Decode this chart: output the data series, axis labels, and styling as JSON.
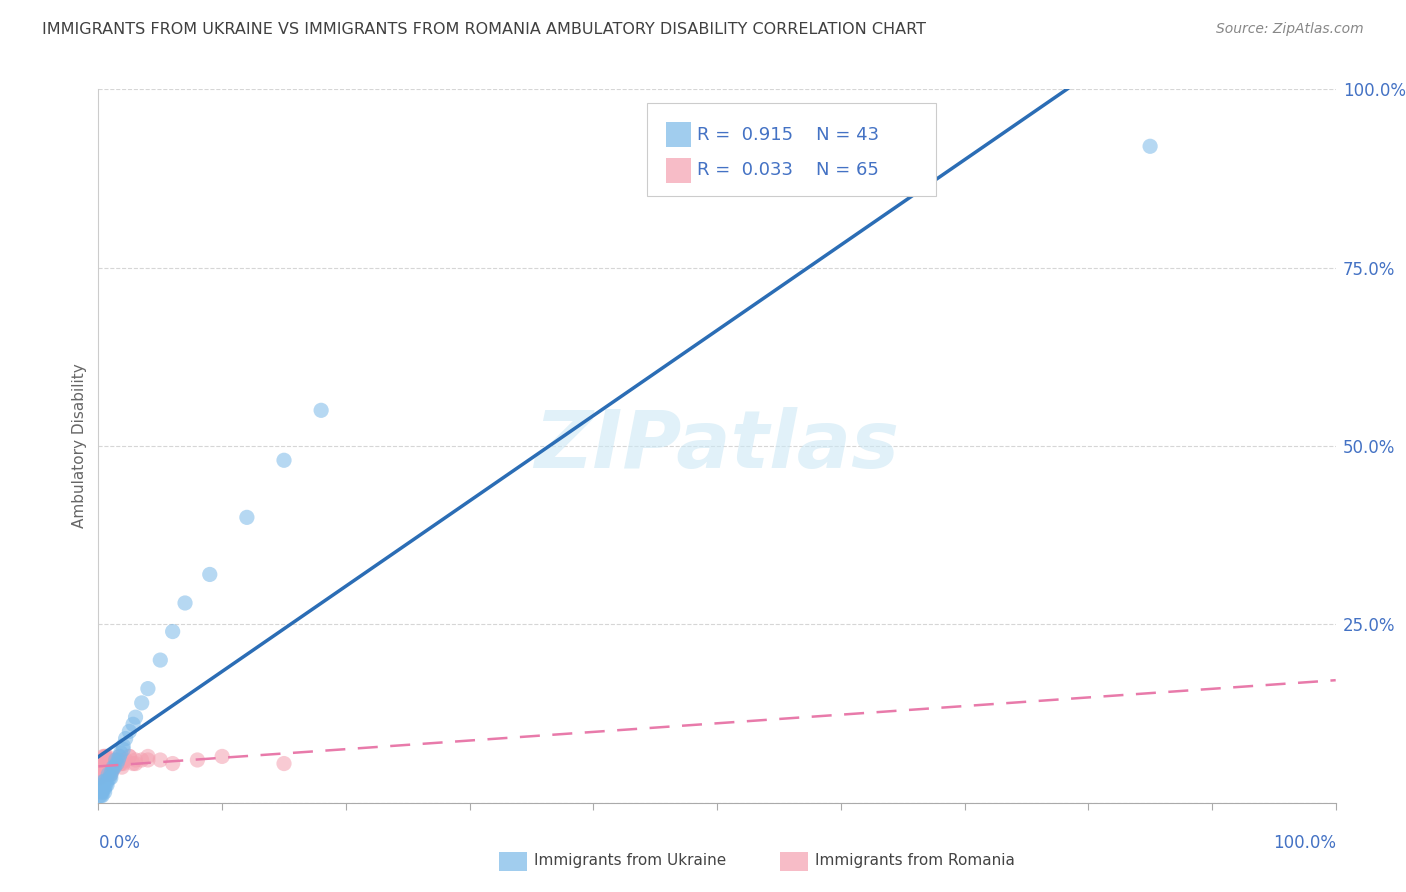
{
  "title": "IMMIGRANTS FROM UKRAINE VS IMMIGRANTS FROM ROMANIA AMBULATORY DISABILITY CORRELATION CHART",
  "source": "Source: ZipAtlas.com",
  "ylabel": "Ambulatory Disability",
  "ukraine_R": 0.915,
  "ukraine_N": 43,
  "romania_R": 0.033,
  "romania_N": 65,
  "ukraine_color": "#7ab8e8",
  "romania_color": "#f4a0b0",
  "trendline_ukraine_color": "#2b6db5",
  "trendline_romania_color": "#e87aaa",
  "legend_label_ukraine": "Immigrants from Ukraine",
  "legend_label_romania": "Immigrants from Romania",
  "watermark": "ZIPatlas",
  "background_color": "#ffffff",
  "grid_color": "#cccccc",
  "axis_color": "#4472c4",
  "title_color": "#404040",
  "ukraine_points_x": [
    0.001,
    0.002,
    0.002,
    0.003,
    0.003,
    0.004,
    0.004,
    0.005,
    0.005,
    0.006,
    0.007,
    0.008,
    0.009,
    0.01,
    0.011,
    0.012,
    0.013,
    0.014,
    0.015,
    0.016,
    0.017,
    0.018,
    0.02,
    0.022,
    0.025,
    0.028,
    0.03,
    0.035,
    0.04,
    0.05,
    0.06,
    0.07,
    0.09,
    0.12,
    0.15,
    0.18,
    0.002,
    0.003,
    0.005,
    0.007,
    0.01,
    0.02,
    0.85
  ],
  "ukraine_points_y": [
    0.01,
    0.015,
    0.02,
    0.01,
    0.025,
    0.02,
    0.03,
    0.015,
    0.03,
    0.025,
    0.03,
    0.04,
    0.035,
    0.04,
    0.045,
    0.05,
    0.05,
    0.06,
    0.055,
    0.06,
    0.065,
    0.07,
    0.08,
    0.09,
    0.1,
    0.11,
    0.12,
    0.14,
    0.16,
    0.2,
    0.24,
    0.28,
    0.32,
    0.4,
    0.48,
    0.55,
    0.01,
    0.015,
    0.02,
    0.025,
    0.035,
    0.075,
    0.92
  ],
  "romania_points_x": [
    0.001,
    0.001,
    0.002,
    0.002,
    0.002,
    0.003,
    0.003,
    0.003,
    0.004,
    0.004,
    0.004,
    0.005,
    0.005,
    0.005,
    0.006,
    0.006,
    0.006,
    0.007,
    0.007,
    0.007,
    0.008,
    0.008,
    0.009,
    0.009,
    0.01,
    0.01,
    0.011,
    0.012,
    0.013,
    0.014,
    0.015,
    0.016,
    0.017,
    0.018,
    0.019,
    0.02,
    0.022,
    0.025,
    0.028,
    0.03,
    0.035,
    0.04,
    0.001,
    0.002,
    0.003,
    0.004,
    0.005,
    0.006,
    0.007,
    0.008,
    0.009,
    0.01,
    0.012,
    0.014,
    0.016,
    0.018,
    0.02,
    0.025,
    0.03,
    0.04,
    0.05,
    0.06,
    0.08,
    0.1,
    0.15
  ],
  "romania_points_y": [
    0.04,
    0.05,
    0.035,
    0.045,
    0.055,
    0.04,
    0.05,
    0.06,
    0.04,
    0.05,
    0.065,
    0.04,
    0.055,
    0.065,
    0.04,
    0.05,
    0.065,
    0.04,
    0.055,
    0.065,
    0.04,
    0.06,
    0.04,
    0.06,
    0.04,
    0.055,
    0.045,
    0.05,
    0.055,
    0.06,
    0.055,
    0.06,
    0.065,
    0.055,
    0.05,
    0.055,
    0.06,
    0.065,
    0.055,
    0.06,
    0.06,
    0.065,
    0.035,
    0.04,
    0.045,
    0.05,
    0.055,
    0.04,
    0.05,
    0.055,
    0.06,
    0.055,
    0.05,
    0.055,
    0.06,
    0.055,
    0.06,
    0.065,
    0.055,
    0.06,
    0.06,
    0.055,
    0.06,
    0.065,
    0.055
  ],
  "xlim": [
    0.0,
    1.0
  ],
  "ylim": [
    0.0,
    1.0
  ],
  "yticks": [
    0.0,
    0.25,
    0.5,
    0.75,
    1.0
  ],
  "ytick_labels": [
    "",
    "25.0%",
    "50.0%",
    "75.0%",
    "100.0%"
  ],
  "xticks": [
    0.0,
    0.1,
    0.2,
    0.3,
    0.4,
    0.5,
    0.6,
    0.7,
    0.8,
    0.9,
    1.0
  ]
}
